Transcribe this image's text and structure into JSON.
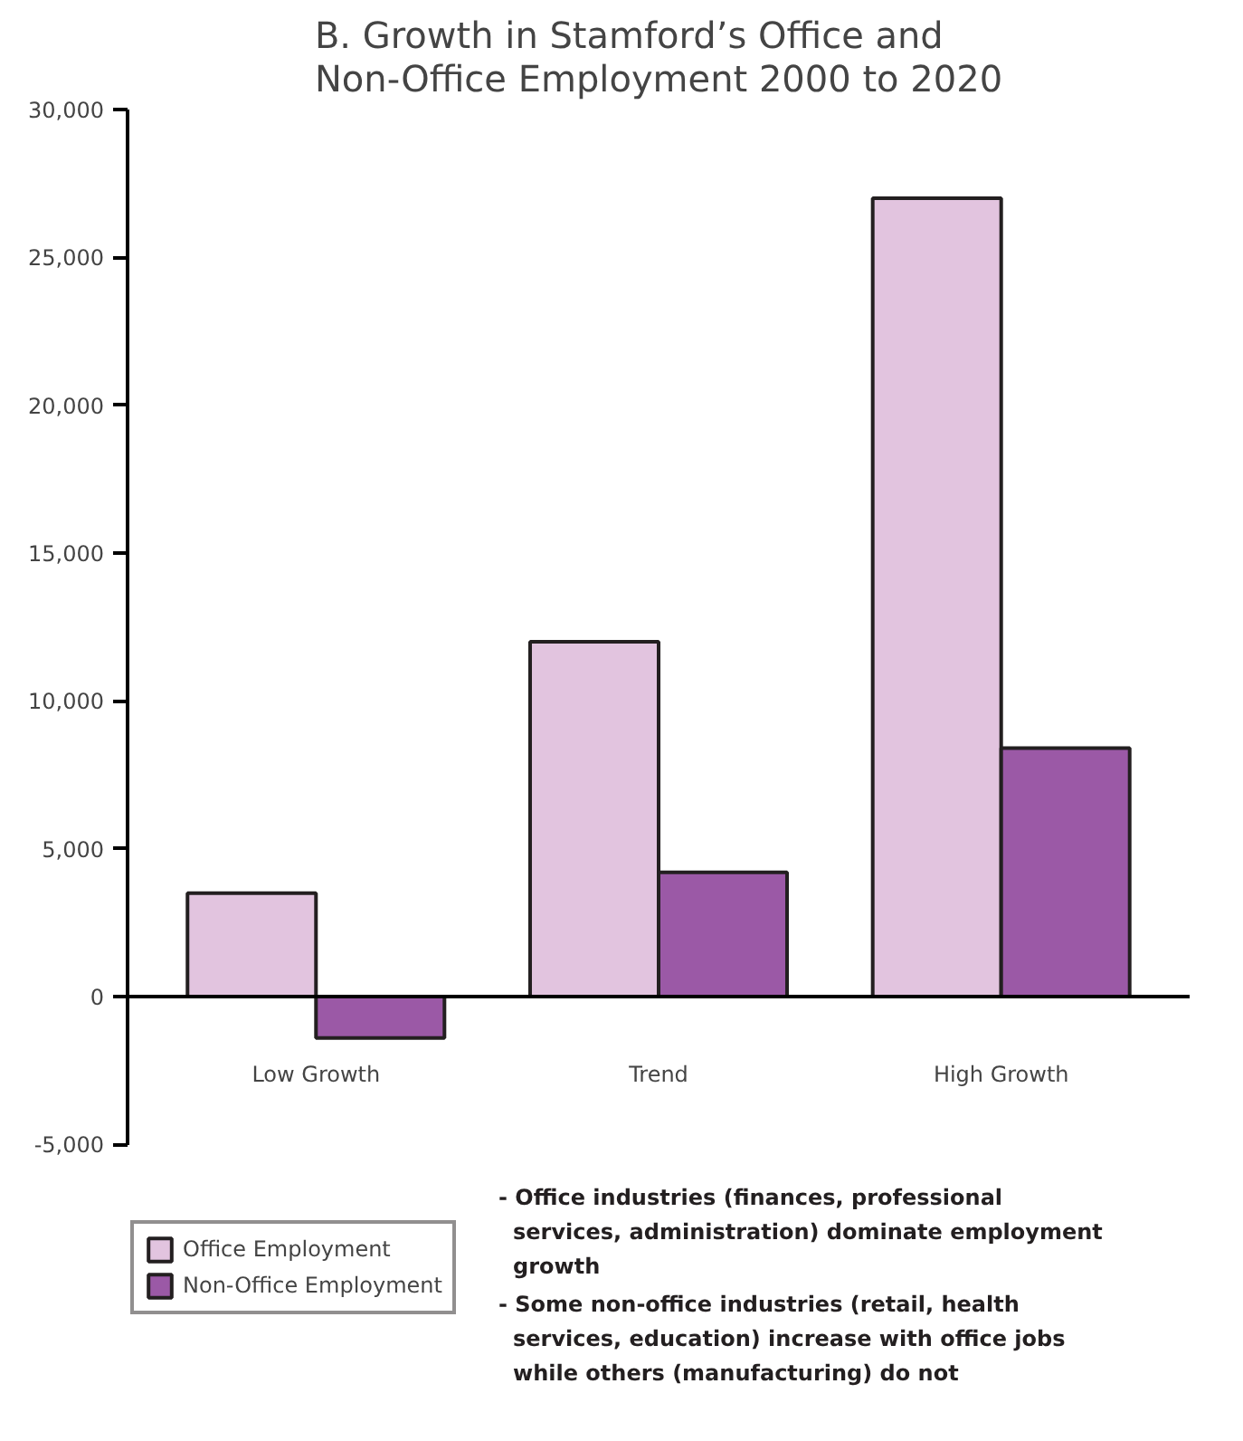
{
  "chart_data": {
    "type": "bar",
    "title": "B.  Growth in Stamford’s Office and\nNon-Office Employment 2000 to 2020",
    "categories": [
      "Low Growth",
      "Trend",
      "High Growth"
    ],
    "series": [
      {
        "name": "Office Employment",
        "color": "#e2c4df",
        "values": [
          3500,
          12000,
          27000
        ]
      },
      {
        "name": "Non-Office Employment",
        "color": "#9b59a6",
        "values": [
          -1400,
          4200,
          8400
        ]
      }
    ],
    "ylim": [
      -5000,
      30000
    ],
    "yticks": [
      {
        "value": -5000,
        "label": "-5,000"
      },
      0,
      {
        "value": 5000,
        "label": "5,000"
      },
      {
        "value": 10000,
        "label": "10,000"
      },
      {
        "value": 15000,
        "label": "15,000"
      },
      {
        "value": 20000,
        "label": "20,000"
      },
      {
        "value": 25000,
        "label": "25,000"
      },
      {
        "value": 30000,
        "label": "30,000"
      }
    ],
    "legend": "bottom left",
    "annotations": [
      "- Office industries (finances, professional services, administration) dominate employment growth",
      "- Some non-office industries (retail, health services, education) increase with office jobs while others (manufacturing) do not"
    ]
  }
}
